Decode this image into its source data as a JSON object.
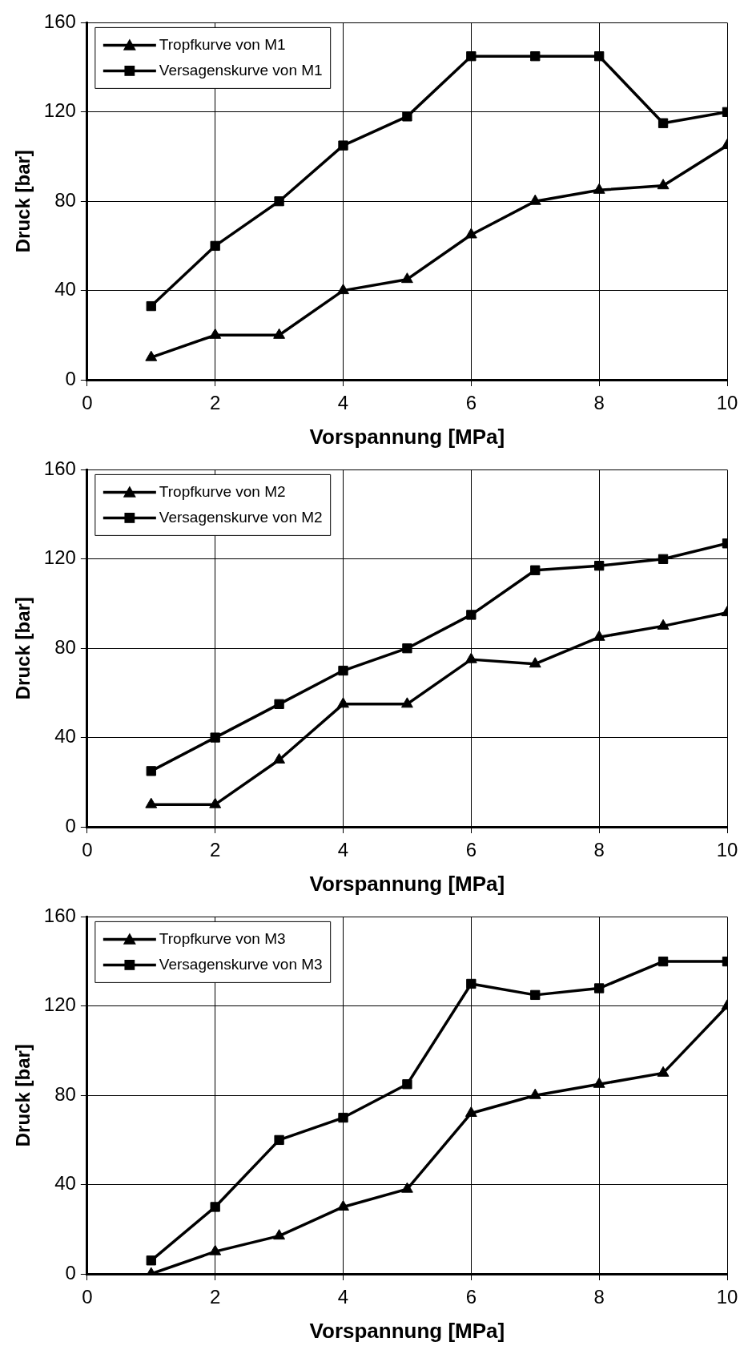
{
  "chart_data": [
    {
      "type": "line",
      "xlabel": "Vorspannung [MPa]",
      "ylabel": "Druck [bar]",
      "x": [
        1,
        2,
        3,
        4,
        5,
        6,
        7,
        8,
        9,
        10
      ],
      "xlim": [
        0,
        10
      ],
      "xticks": [
        0,
        2,
        4,
        6,
        8,
        10
      ],
      "ylim": [
        0,
        160
      ],
      "yticks": [
        0,
        40,
        80,
        120,
        160
      ],
      "grid": true,
      "legend": "top left",
      "line_style": "solid",
      "series": [
        {
          "name": "Tropfkurve von M1",
          "color": "#000000",
          "marker": "triangle",
          "values": [
            10,
            20,
            20,
            40,
            45,
            65,
            80,
            85,
            87,
            105
          ]
        },
        {
          "name": "Versagenskurve von M1",
          "color": "#000000",
          "marker": "square",
          "values": [
            33,
            60,
            80,
            105,
            118,
            145,
            145,
            145,
            115,
            120
          ]
        }
      ]
    },
    {
      "type": "line",
      "xlabel": "Vorspannung [MPa]",
      "ylabel": "Druck [bar]",
      "x": [
        1,
        2,
        3,
        4,
        5,
        6,
        7,
        8,
        9,
        10
      ],
      "xlim": [
        0,
        10
      ],
      "xticks": [
        0,
        2,
        4,
        6,
        8,
        10
      ],
      "ylim": [
        0,
        160
      ],
      "yticks": [
        0,
        40,
        80,
        120,
        160
      ],
      "grid": true,
      "legend": "top left",
      "line_style": "solid",
      "series": [
        {
          "name": "Tropfkurve von M2",
          "color": "#000000",
          "marker": "triangle",
          "values": [
            10,
            10,
            30,
            55,
            55,
            75,
            73,
            85,
            90,
            96
          ]
        },
        {
          "name": "Versagenskurve von M2",
          "color": "#000000",
          "marker": "square",
          "values": [
            25,
            40,
            55,
            70,
            80,
            95,
            115,
            117,
            120,
            127
          ]
        }
      ]
    },
    {
      "type": "line",
      "xlabel": "Vorspannung [MPa]",
      "ylabel": "Druck [bar]",
      "x": [
        1,
        2,
        3,
        4,
        5,
        6,
        7,
        8,
        9,
        10
      ],
      "xlim": [
        0,
        10
      ],
      "xticks": [
        0,
        2,
        4,
        6,
        8,
        10
      ],
      "ylim": [
        0,
        160
      ],
      "yticks": [
        0,
        40,
        80,
        120,
        160
      ],
      "grid": true,
      "legend": "top left",
      "line_style": "solid",
      "series": [
        {
          "name": "Tropfkurve von M3",
          "color": "#000000",
          "marker": "triangle",
          "values": [
            0,
            10,
            17,
            30,
            38,
            72,
            80,
            85,
            90,
            120
          ]
        },
        {
          "name": "Versagenskurve von M3",
          "color": "#000000",
          "marker": "square",
          "values": [
            6,
            30,
            60,
            70,
            85,
            130,
            125,
            128,
            140,
            140
          ]
        }
      ]
    }
  ]
}
